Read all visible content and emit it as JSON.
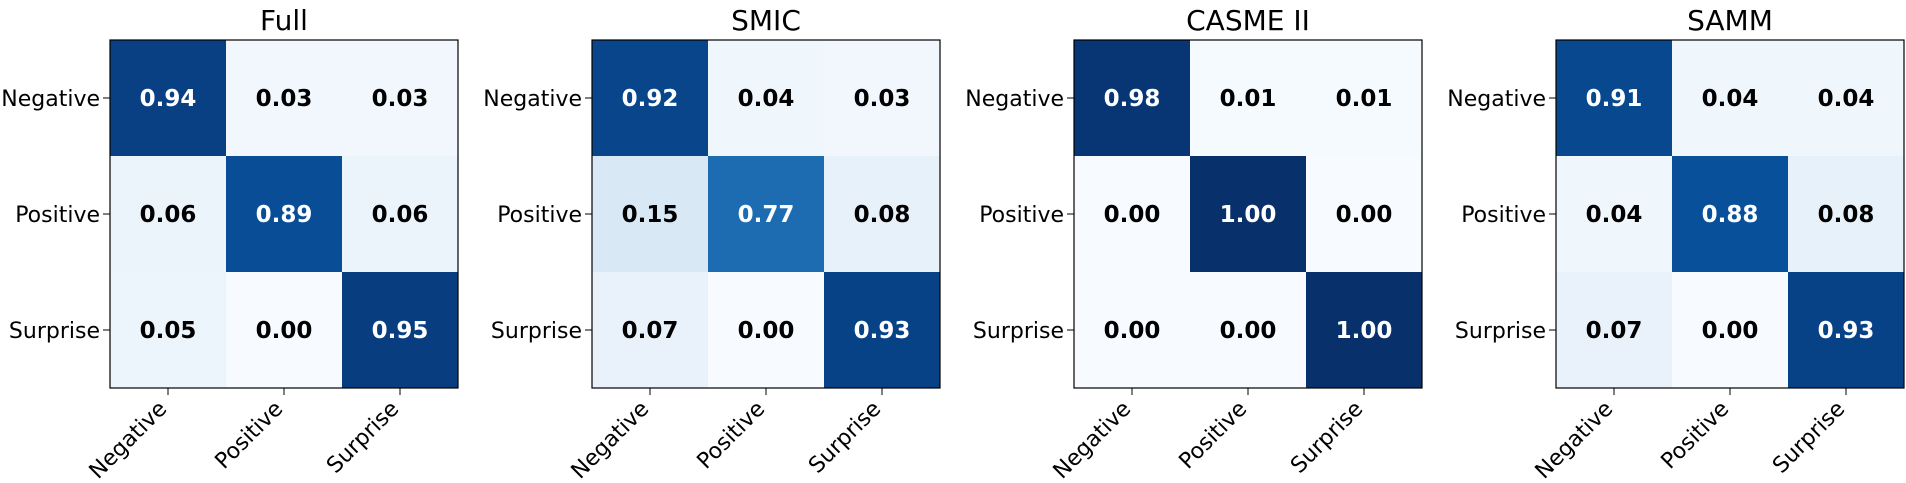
{
  "chart_data": [
    {
      "type": "heatmap",
      "title": "Full",
      "rows": [
        "Negative",
        "Positive",
        "Surprise"
      ],
      "cols": [
        "Negative",
        "Positive",
        "Surprise"
      ],
      "values": [
        [
          0.94,
          0.03,
          0.03
        ],
        [
          0.06,
          0.89,
          0.06
        ],
        [
          0.05,
          0.0,
          0.95
        ]
      ],
      "labels": [
        [
          "0.94",
          "0.03",
          "0.03"
        ],
        [
          "0.06",
          "0.89",
          "0.06"
        ],
        [
          "0.05",
          "0.00",
          "0.95"
        ]
      ],
      "vmin": 0,
      "vmax": 1,
      "colormap": "Blues"
    },
    {
      "type": "heatmap",
      "title": "SMIC",
      "rows": [
        "Negative",
        "Positive",
        "Surprise"
      ],
      "cols": [
        "Negative",
        "Positive",
        "Surprise"
      ],
      "values": [
        [
          0.92,
          0.04,
          0.03
        ],
        [
          0.15,
          0.77,
          0.08
        ],
        [
          0.07,
          0.0,
          0.93
        ]
      ],
      "labels": [
        [
          "0.92",
          "0.04",
          "0.03"
        ],
        [
          "0.15",
          "0.77",
          "0.08"
        ],
        [
          "0.07",
          "0.00",
          "0.93"
        ]
      ],
      "vmin": 0,
      "vmax": 1,
      "colormap": "Blues"
    },
    {
      "type": "heatmap",
      "title": "CASME II",
      "rows": [
        "Negative",
        "Positive",
        "Surprise"
      ],
      "cols": [
        "Negative",
        "Positive",
        "Surprise"
      ],
      "values": [
        [
          0.98,
          0.01,
          0.01
        ],
        [
          0.0,
          1.0,
          0.0
        ],
        [
          0.0,
          0.0,
          1.0
        ]
      ],
      "labels": [
        [
          "0.98",
          "0.01",
          "0.01"
        ],
        [
          "0.00",
          "1.00",
          "0.00"
        ],
        [
          "0.00",
          "0.00",
          "1.00"
        ]
      ],
      "vmin": 0,
      "vmax": 1,
      "colormap": "Blues"
    },
    {
      "type": "heatmap",
      "title": "SAMM",
      "rows": [
        "Negative",
        "Positive",
        "Surprise"
      ],
      "cols": [
        "Negative",
        "Positive",
        "Surprise"
      ],
      "values": [
        [
          0.91,
          0.04,
          0.04
        ],
        [
          0.04,
          0.88,
          0.08
        ],
        [
          0.07,
          0.0,
          0.93
        ]
      ],
      "labels": [
        [
          "0.91",
          "0.04",
          "0.04"
        ],
        [
          "0.04",
          "0.88",
          "0.08"
        ],
        [
          "0.07",
          "0.00",
          "0.93"
        ]
      ],
      "vmin": 0,
      "vmax": 1,
      "colormap": "Blues"
    }
  ]
}
